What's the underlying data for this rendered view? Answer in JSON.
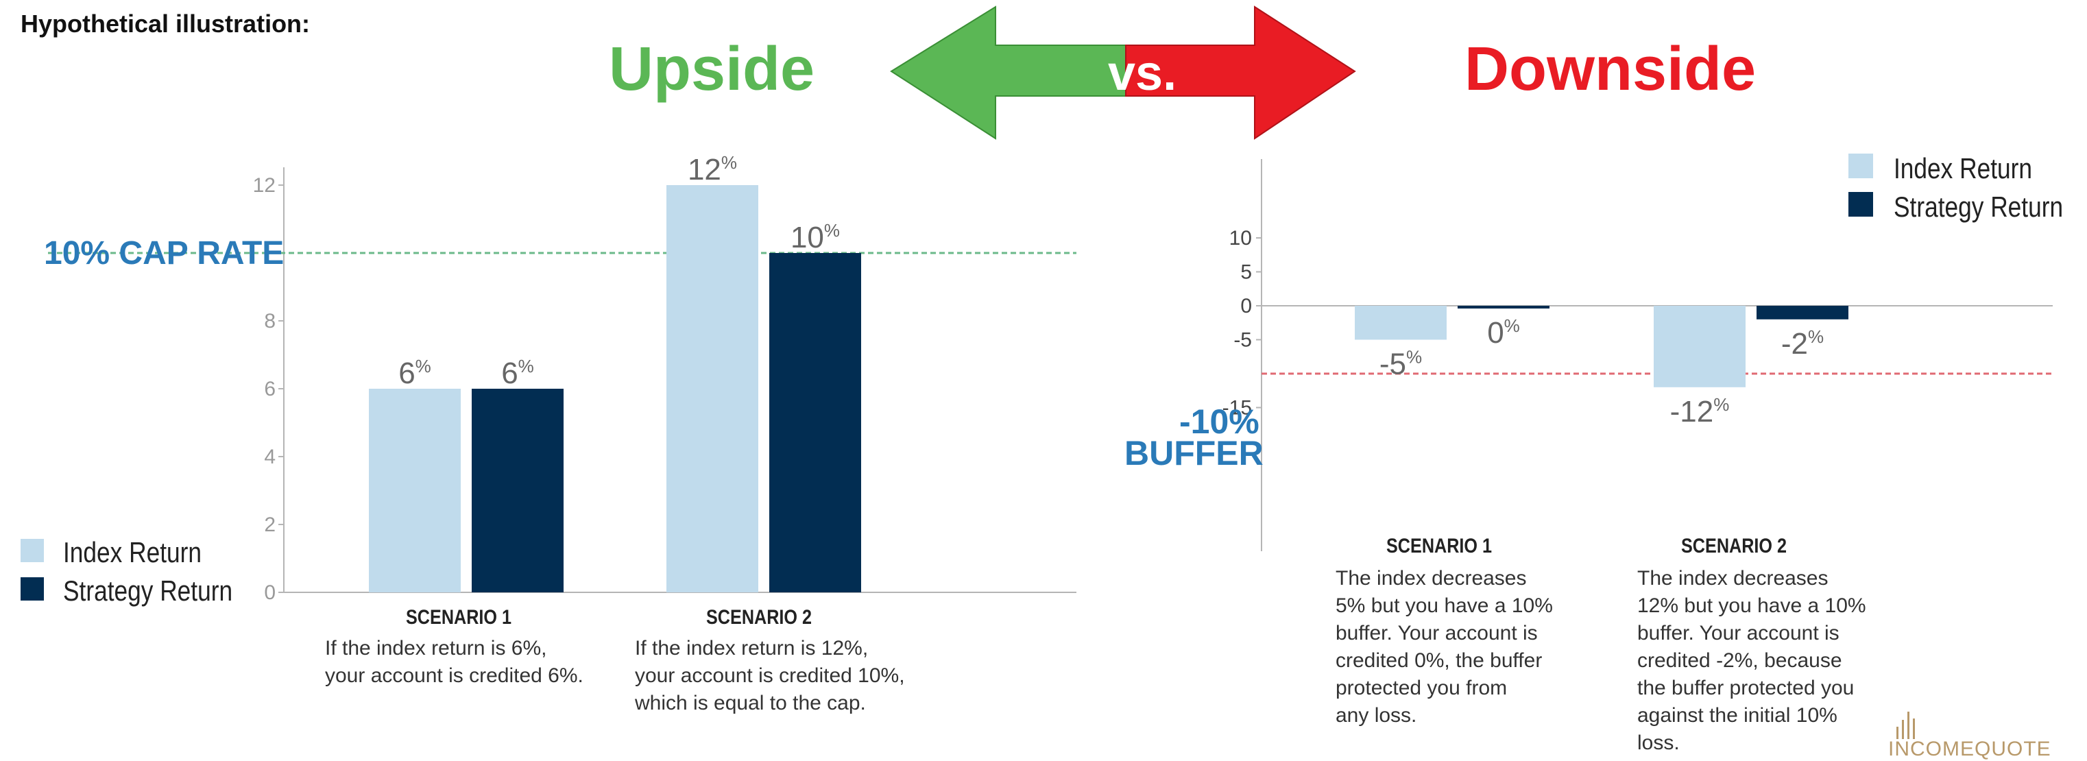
{
  "header": {
    "hypothetical": "Hypothetical illustration:",
    "upside": "Upside",
    "vs": "vs.",
    "downside": "Downside"
  },
  "colors": {
    "index": "#c0dbec",
    "strategy": "#022d52",
    "accent_blue": "#2a7ab8",
    "upside_green": "#5bb755",
    "downside_red": "#e91c24",
    "axis": "#b5b5b5",
    "gold": "#b8996a"
  },
  "left": {
    "cap_label": "10% CAP RATE",
    "legend": [
      {
        "label": "Index Return",
        "color": "#c0dbec"
      },
      {
        "label": "Strategy Return",
        "color": "#022d52"
      }
    ],
    "scenarios": [
      {
        "title": "SCENARIO 1",
        "desc": "If the index return is 6%,\nyour account is credited 6%."
      },
      {
        "title": "SCENARIO 2",
        "desc": "If the index return is 12%,\nyour account is credited 10%,\nwhich is equal to the cap."
      }
    ]
  },
  "right": {
    "buffer_line1": "-10%",
    "buffer_line2": "BUFFER",
    "legend": [
      {
        "label": "Index Return",
        "color": "#c0dbec"
      },
      {
        "label": "Strategy Return",
        "color": "#022d52"
      }
    ],
    "scenarios": [
      {
        "title": "SCENARIO 1",
        "desc": "The index decreases\n5% but you have a 10%\nbuffer. Your account is\ncredited 0%, the buffer\nprotected you from\nany loss."
      },
      {
        "title": "SCENARIO 2",
        "desc": "The index decreases\n12% but you have a 10%\nbuffer. Your account is\ncredited -2%, because\nthe buffer protected you\nagainst the initial 10%\nloss."
      }
    ]
  },
  "logo": {
    "prefix": "I",
    "text": "NCOMEQUOTE"
  },
  "chart_data": [
    {
      "type": "bar",
      "categories": [
        "SCENARIO 1",
        "SCENARIO 2"
      ],
      "series": [
        {
          "name": "Index Return",
          "values": [
            6,
            12
          ],
          "labels": [
            "6%",
            "12%"
          ]
        },
        {
          "name": "Strategy Return",
          "values": [
            6,
            10
          ],
          "labels": [
            "6%",
            "10%"
          ]
        }
      ],
      "yticks": [
        0,
        2,
        4,
        6,
        8,
        12
      ],
      "ylim": [
        0,
        12.6
      ],
      "reference_line": {
        "value": 10,
        "label": "10% CAP RATE"
      },
      "legend": "bottom-left",
      "grid": false
    },
    {
      "type": "bar",
      "categories": [
        "SCENARIO 1",
        "SCENARIO 2"
      ],
      "series": [
        {
          "name": "Index Return",
          "values": [
            -5,
            -12
          ],
          "labels": [
            "-5%",
            "-12%"
          ]
        },
        {
          "name": "Strategy Return",
          "values": [
            0,
            -2
          ],
          "labels": [
            "0%",
            "-2%"
          ]
        }
      ],
      "yticks": [
        10,
        5,
        0,
        -5,
        -15
      ],
      "ylim": [
        -18,
        11
      ],
      "reference_line": {
        "value": -10,
        "label": "-10% BUFFER"
      },
      "legend": "top-right",
      "grid": false
    }
  ]
}
